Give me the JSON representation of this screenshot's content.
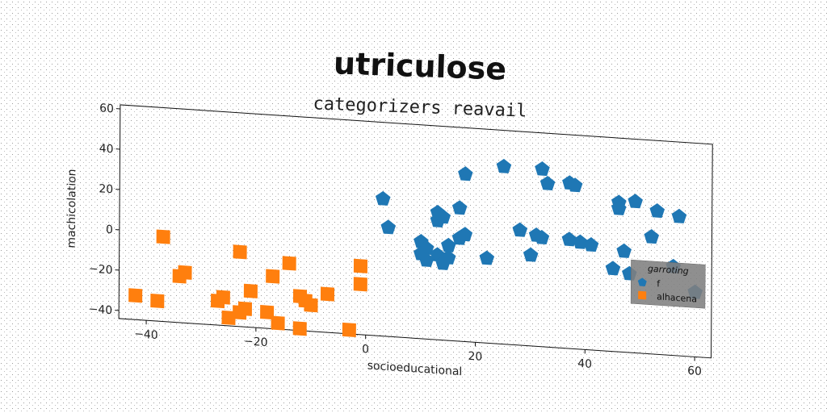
{
  "chart_data": {
    "type": "scatter",
    "title": "utriculose",
    "subtitle": "categorizers reavail",
    "xlabel": "socioeducational",
    "ylabel": "machicolation",
    "xlim": [
      -45,
      63
    ],
    "ylim": [
      -44,
      62
    ],
    "xticks": [
      -40,
      -20,
      0,
      20,
      40,
      60
    ],
    "yticks": [
      -40,
      -20,
      0,
      20,
      40,
      60
    ],
    "grid": false,
    "legend": {
      "title": "garroting",
      "placement": "right"
    },
    "series": [
      {
        "name": "f",
        "marker": "pentagon",
        "color": "#1f77b4",
        "points": [
          [
            3,
            24
          ],
          [
            4,
            10
          ],
          [
            10,
            4
          ],
          [
            11,
            1
          ],
          [
            10,
            -2
          ],
          [
            11,
            -5
          ],
          [
            13,
            19
          ],
          [
            13,
            15
          ],
          [
            14,
            17
          ],
          [
            15,
            3
          ],
          [
            13,
            -2
          ],
          [
            15,
            -3
          ],
          [
            14,
            -6
          ],
          [
            17,
            22
          ],
          [
            17,
            7
          ],
          [
            18,
            9
          ],
          [
            18,
            39
          ],
          [
            22,
            -2
          ],
          [
            25,
            44
          ],
          [
            28,
            13
          ],
          [
            30,
            1
          ],
          [
            31,
            11
          ],
          [
            32,
            10
          ],
          [
            32,
            44
          ],
          [
            33,
            37
          ],
          [
            37,
            38
          ],
          [
            37,
            10
          ],
          [
            38,
            37
          ],
          [
            39,
            9
          ],
          [
            41,
            8
          ],
          [
            45,
            -3
          ],
          [
            46,
            30
          ],
          [
            46,
            27
          ],
          [
            47,
            6
          ],
          [
            48,
            -5
          ],
          [
            49,
            31
          ],
          [
            52,
            14
          ],
          [
            53,
            27
          ],
          [
            56,
            0
          ],
          [
            57,
            25
          ],
          [
            60,
            -12
          ]
        ]
      },
      {
        "name": "alhacena",
        "marker": "square",
        "color": "#ff7f0e",
        "points": [
          [
            -42,
            -32
          ],
          [
            -38,
            -34
          ],
          [
            -37,
            -2
          ],
          [
            -34,
            -21
          ],
          [
            -33,
            -19
          ],
          [
            -27,
            -32
          ],
          [
            -26,
            -30
          ],
          [
            -25,
            -40
          ],
          [
            -23,
            -7
          ],
          [
            -23,
            -37
          ],
          [
            -22,
            -35
          ],
          [
            -21,
            -26
          ],
          [
            -18,
            -36
          ],
          [
            -17,
            -18
          ],
          [
            -16,
            -41
          ],
          [
            -14,
            -11
          ],
          [
            -12,
            -27
          ],
          [
            -12,
            -43
          ],
          [
            -11,
            -29
          ],
          [
            -10,
            -31
          ],
          [
            -7,
            -25
          ],
          [
            -3,
            -42
          ],
          [
            -1,
            -10
          ],
          [
            -1,
            -19
          ]
        ]
      }
    ]
  }
}
